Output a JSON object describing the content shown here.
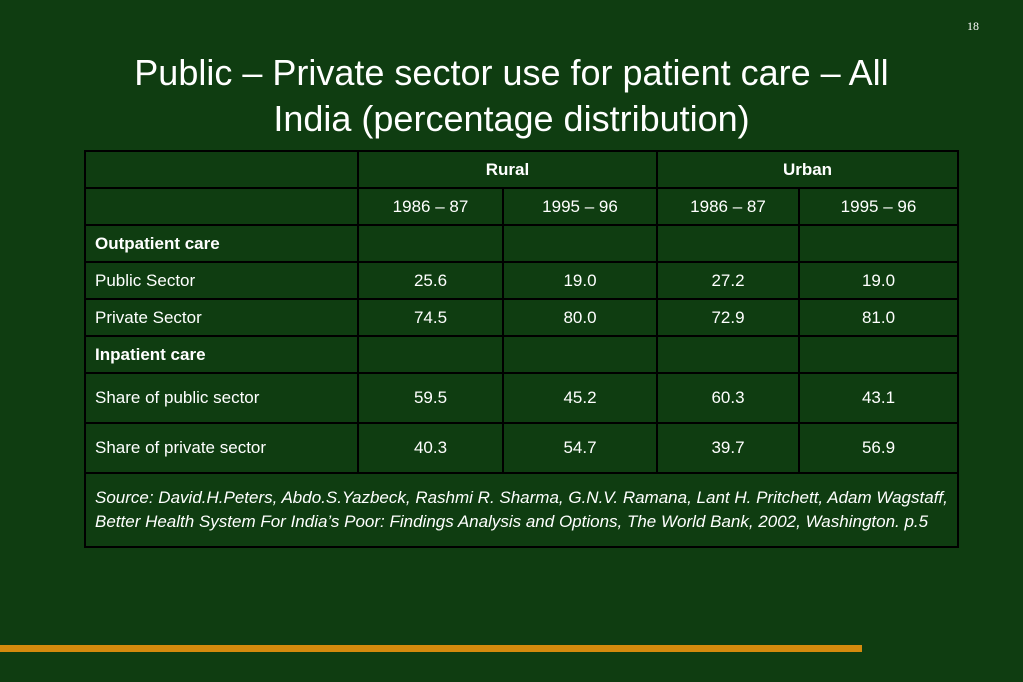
{
  "slide": {
    "page_number": "18",
    "title_line1": "Public – Private sector use for patient care – All",
    "title_line2": "India (percentage distribution)"
  },
  "table": {
    "group_headers": [
      "Rural",
      "Urban"
    ],
    "year_headers": [
      "1986 – 87",
      "1995 – 96",
      "1986 – 87",
      "1995 – 96"
    ],
    "sections": [
      {
        "label": "Outpatient care",
        "rows": [
          {
            "label": "Public Sector",
            "values": [
              "25.6",
              "19.0",
              "27.2",
              "19.0"
            ]
          },
          {
            "label": "Private Sector",
            "values": [
              "74.5",
              "80.0",
              "72.9",
              "81.0"
            ]
          }
        ]
      },
      {
        "label": "Inpatient care",
        "rows": [
          {
            "label": "Share of public sector",
            "values": [
              "59.5",
              "45.2",
              "60.3",
              "43.1"
            ]
          },
          {
            "label": "Share of private sector",
            "values": [
              "40.3",
              "54.7",
              "39.7",
              "56.9"
            ]
          }
        ]
      }
    ],
    "source": "Source: David.H.Peters, Abdo.S.Yazbeck, Rashmi R. Sharma, G.N.V. Ramana, Lant H. Pritchett, Adam Wagstaff, Better Health System For India’s Poor: Findings Analysis and Options, The World Bank, 2002, Washington. p.5"
  },
  "colors": {
    "background": "#0f3d11",
    "text": "#ffffff",
    "highlight_text": "#ffff99",
    "table_border": "#000000",
    "accent_bar": "#d48a0e"
  }
}
